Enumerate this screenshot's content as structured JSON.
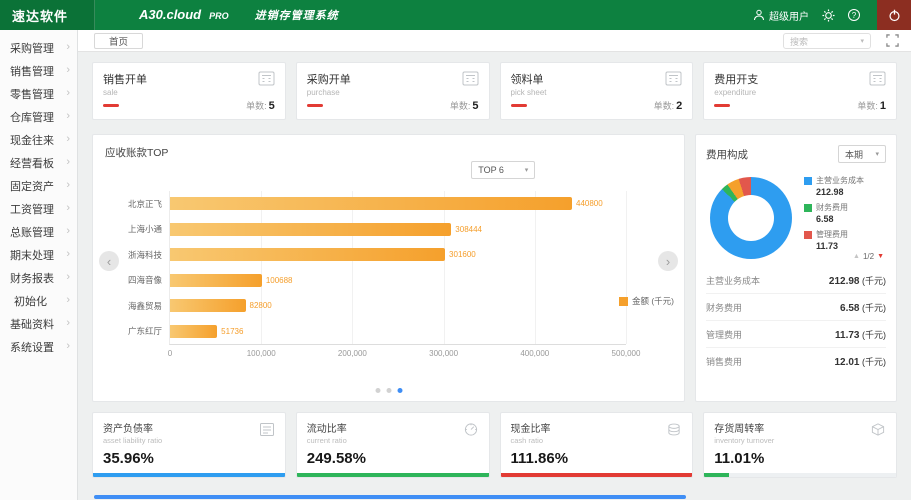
{
  "header": {
    "logo": "速达软件",
    "product": "A30.cloud",
    "edition": "PRO",
    "system_name": "进销存管理系统",
    "user_label": "超级用户"
  },
  "icons": {
    "chevron_right": "›",
    "chevron_down": "▾",
    "arrow_left": "‹",
    "arrow_right": "›",
    "page_up": "▲",
    "page_down": "▼",
    "help": "?"
  },
  "tabbar": {
    "home_tab": "首页",
    "search_placeholder": "搜索"
  },
  "sidebar": {
    "items": [
      {
        "label": "采购管理"
      },
      {
        "label": "销售管理"
      },
      {
        "label": "零售管理"
      },
      {
        "label": "仓库管理"
      },
      {
        "label": "现金往来"
      },
      {
        "label": "经营看板"
      },
      {
        "label": "固定资产"
      },
      {
        "label": "工资管理"
      },
      {
        "label": "总账管理"
      },
      {
        "label": "期末处理"
      },
      {
        "label": "财务报表"
      },
      {
        "label": "初始化"
      },
      {
        "label": "基础资料"
      },
      {
        "label": "系统设置"
      }
    ]
  },
  "kpi_cards": [
    {
      "title": "销售开单",
      "subtitle": "sale",
      "count_label": "单数:",
      "count": "5"
    },
    {
      "title": "采购开单",
      "subtitle": "purchase",
      "count_label": "单数:",
      "count": "5"
    },
    {
      "title": "领料单",
      "subtitle": "pick sheet",
      "count_label": "单数:",
      "count": "2"
    },
    {
      "title": "费用开支",
      "subtitle": "expenditure",
      "count_label": "单数:",
      "count": "1"
    }
  ],
  "receivables_card": {
    "title": "应收账款TOP",
    "filter": "TOP 6",
    "legend_label": "金额 (千元)",
    "chart_data": {
      "type": "bar",
      "orientation": "horizontal",
      "categories": [
        "北京正飞",
        "上海小通",
        "浙海科技",
        "四海音像",
        "海鑫贸易",
        "广东红厅"
      ],
      "values": [
        440800,
        308444,
        301600,
        100688,
        82800,
        51736
      ],
      "series_name": "金额 (千元)",
      "bar_color": "#f5a02c",
      "bar_color_light": "#f8c871",
      "xlim": [
        0,
        500000
      ],
      "x_ticks": [
        "0",
        "100,000",
        "200,000",
        "300,000",
        "400,000",
        "500,000"
      ],
      "grid": true,
      "legend_position": "right"
    }
  },
  "expense_card": {
    "title": "费用构成",
    "period": "本期",
    "pager_label": "1/2",
    "chart_data": {
      "type": "pie",
      "unit": "千元",
      "items": [
        {
          "name": "主营业务成本",
          "value": 212.98,
          "color": "#2e9df0"
        },
        {
          "name": "财务费用",
          "value": 6.58,
          "color": "#2eb55a"
        },
        {
          "name": "管理费用",
          "value": 11.73,
          "color": "#e2574c"
        },
        {
          "name": "销售费用",
          "value": 12.01,
          "color": "#f5a02c"
        }
      ]
    },
    "legend": [
      {
        "name": "主营业务成本",
        "value": "212.98"
      },
      {
        "name": "财务费用",
        "value": "6.58"
      },
      {
        "name": "管理费用",
        "value": "11.73"
      }
    ],
    "rows": [
      {
        "name": "主营业务成本",
        "value": "212.98",
        "unit": "(千元)"
      },
      {
        "name": "财务费用",
        "value": "6.58",
        "unit": "(千元)"
      },
      {
        "name": "管理费用",
        "value": "11.73",
        "unit": "(千元)"
      },
      {
        "name": "销售费用",
        "value": "12.01",
        "unit": "(千元)"
      }
    ]
  },
  "metric_cards": [
    {
      "title": "资产负债率",
      "subtitle": "asset liability ratio",
      "value": "35.96%",
      "color": "#2e9df0",
      "fill": 100
    },
    {
      "title": "流动比率",
      "subtitle": "current ratio",
      "value": "249.58%",
      "color": "#2eb55a",
      "fill": 100
    },
    {
      "title": "现金比率",
      "subtitle": "cash ratio",
      "value": "111.86%",
      "color": "#e23b34",
      "fill": 100
    },
    {
      "title": "存货周转率",
      "subtitle": "inventory turnover",
      "value": "11.01%",
      "color": "#2eb55a",
      "fill": 13
    }
  ]
}
